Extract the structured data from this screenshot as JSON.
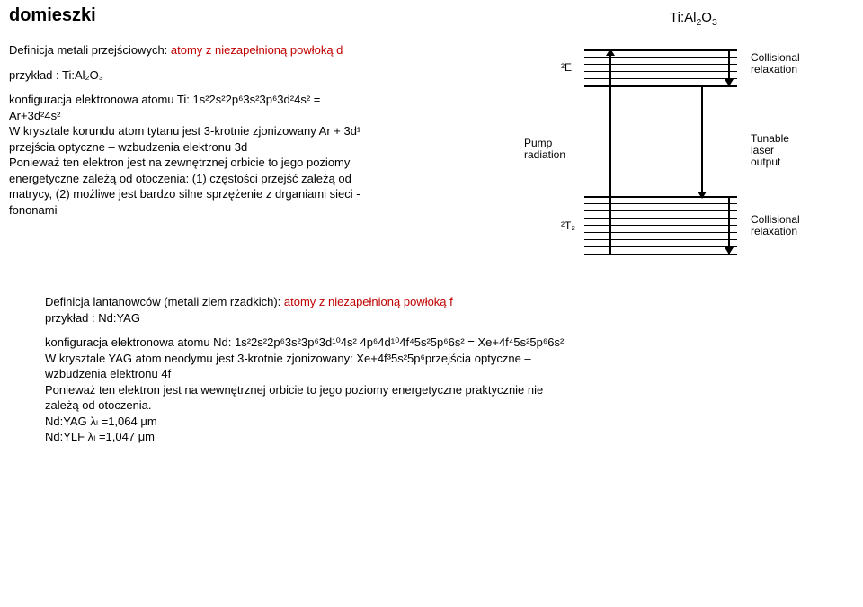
{
  "header": "domieszki",
  "tiAl": "Ti:Al",
  "tiAlSub1": "2",
  "tiAlO": "O",
  "tiAlSub2": "3",
  "def1_a": "Definicja metali przejściowych: ",
  "def1_b": "atomy z niezapełnioną powłoką d",
  "przyklad1": "przykład : Ti:Al₂O₃",
  "konfig1_a": "konfiguracja elektronowa atomu Ti:  1s²2s²2p⁶3s²3p⁶3d²4s²  =",
  "konfig1_b": "Ar+3d²4s²",
  "kryst1_a": "W krysztale korundu atom tytanu jest 3-krotnie zjonizowany  Ar + 3d¹",
  "kryst1_b": "przejścia optyczne – wzbudzenia elektronu 3d",
  "poniewaz1_a": "Ponieważ ten elektron jest na zewnętrznej orbicie to jego poziomy",
  "poniewaz1_b": "energetyczne zależą od otoczenia: (1) częstości przejść zależą od",
  "poniewaz1_c": "matrycy, (2) możliwe jest bardzo silne sprzężenie z drganiami sieci -",
  "poniewaz1_d": "fononami",
  "diagram": {
    "label2E": "²E",
    "label2T": "²T₂",
    "pump": "Pump\nradiation",
    "laser": "Tunable\nlaser\noutput",
    "crelax": "Collisional\nrelaxation"
  },
  "def2_a": "Definicja lantanowców (metali ziem rzadkich): ",
  "def2_b": "atomy z niezapełnioną powłoką f",
  "przyklad2": "przykład : Nd:YAG",
  "konfig2": "konfiguracja elektronowa atomu Nd:  1s²2s²2p⁶3s²3p⁶3d¹⁰4s² 4p⁶4d¹⁰4f⁴5s²5p⁶6s² = Xe+4f⁴5s²5p⁶6s²",
  "kryst2_a": "W krysztale YAG atom neodymu jest 3-krotnie zjonizowany:   Xe+4f³5s²5p⁶przejścia optyczne –",
  "kryst2_b": "wzbudzenia elektronu 4f",
  "poniewaz2_a": "Ponieważ ten elektron jest na wewnętrznej orbicie to jego poziomy energetyczne praktycznie nie",
  "poniewaz2_b": "zależą od otoczenia.",
  "ndyag": "Nd:YAG    λₗ =1,064 μm",
  "ndylf": "Nd:YLF    λₗ =1,047 μm"
}
